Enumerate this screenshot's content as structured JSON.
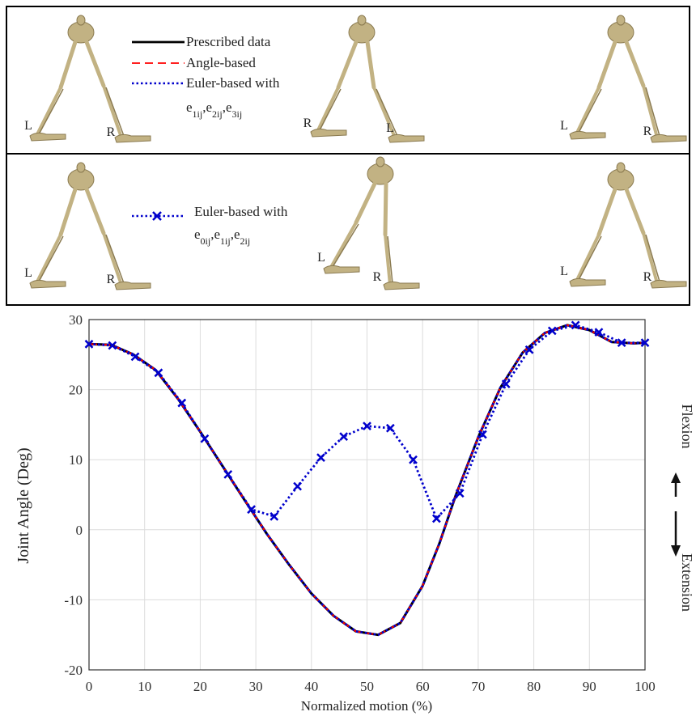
{
  "panels": [
    {
      "labels": [
        [
          "L",
          "R"
        ],
        [
          "R",
          "L"
        ],
        [
          "L",
          "R"
        ]
      ]
    },
    {
      "labels": [
        [
          "L",
          "R"
        ],
        [
          "L",
          "R"
        ],
        [
          "L",
          "R"
        ]
      ]
    }
  ],
  "chart_data": {
    "type": "line",
    "ylabel": "Joint Angle (Deg)",
    "xlabel": "Normalized motion (%)",
    "xlim": [
      0,
      100
    ],
    "xticks": [
      0,
      10,
      20,
      30,
      40,
      50,
      60,
      70,
      80,
      90,
      100
    ],
    "ylim": [
      -20,
      30
    ],
    "yticks": [
      -20,
      -10,
      0,
      10,
      20,
      30
    ],
    "grid": true,
    "annotations": {
      "up": "Flexion",
      "down": "Extension"
    },
    "series": [
      {
        "name": "Prescribed data",
        "color": "#000000",
        "dash": "solid",
        "panel": 0,
        "x": [
          0,
          4,
          8,
          12,
          16,
          20,
          24,
          28,
          32,
          36,
          40,
          44,
          48,
          52,
          56,
          60,
          63,
          66,
          70,
          74,
          78,
          82,
          86,
          90,
          94,
          98,
          100
        ],
        "values": [
          26.5,
          26.4,
          25,
          22.8,
          18.7,
          14,
          9.1,
          4.2,
          -0.6,
          -5,
          -9.1,
          -12.3,
          -14.5,
          -15,
          -13.3,
          -8,
          -2,
          5,
          13.2,
          20.3,
          25.3,
          28.1,
          29.2,
          28.5,
          26.8,
          26.6,
          26.7
        ]
      },
      {
        "name": "Angle-based",
        "color": "#ff0000",
        "dash": "dashed",
        "panel": 0,
        "x": [
          0,
          4,
          8,
          12,
          16,
          20,
          24,
          28,
          32,
          36,
          40,
          44,
          48,
          52,
          56,
          60,
          63,
          66,
          70,
          74,
          78,
          82,
          86,
          90,
          94,
          98,
          100
        ],
        "values": [
          26.5,
          26.4,
          25,
          22.8,
          18.7,
          14,
          9.1,
          4.2,
          -0.6,
          -5,
          -9.1,
          -12.3,
          -14.5,
          -15,
          -13.3,
          -8,
          -2,
          5,
          13.2,
          20.3,
          25.3,
          28.1,
          29.2,
          28.5,
          26.8,
          26.6,
          26.7
        ]
      },
      {
        "name": "Euler-based with",
        "name_line2": [
          [
            "e",
            "1ij"
          ],
          [
            ",e",
            "2ij"
          ],
          [
            ",e",
            "3ij"
          ]
        ],
        "color": "#0000cc",
        "dash": "dotted",
        "panel": 0,
        "x": [
          0,
          4,
          8,
          12,
          16,
          20,
          24,
          28,
          32,
          36,
          40,
          44,
          48,
          52,
          56,
          60,
          63,
          66,
          70,
          74,
          78,
          82,
          86,
          90,
          94,
          98,
          100
        ],
        "values": [
          26.5,
          26.4,
          25,
          22.8,
          18.7,
          14,
          9.1,
          4.2,
          -0.6,
          -5,
          -9.1,
          -12.3,
          -14.5,
          -15,
          -13.3,
          -8,
          -2,
          5,
          13.2,
          20.3,
          25.3,
          28.1,
          29.2,
          28.5,
          26.8,
          26.6,
          26.7
        ]
      },
      {
        "name": "Euler-based with",
        "name_line2": [
          [
            "e",
            "0ij"
          ],
          [
            ",e",
            "1ij"
          ],
          [
            ",e",
            "2ij"
          ]
        ],
        "color": "#0000cc",
        "dash": "dotted",
        "marker": "x",
        "panel": 1,
        "x": [
          0,
          4.2,
          8.3,
          12.5,
          16.7,
          20.8,
          25,
          29.2,
          33.3,
          37.5,
          41.7,
          45.8,
          50,
          54.2,
          58.3,
          62.5,
          66.7,
          70.8,
          75,
          79.2,
          83.3,
          87.5,
          91.7,
          95.8,
          100
        ],
        "values": [
          26.5,
          26.3,
          24.7,
          22.4,
          18.1,
          13,
          7.9,
          2.9,
          1.9,
          6.2,
          10.3,
          13.3,
          14.8,
          14.5,
          10,
          1.6,
          5.2,
          13.6,
          20.8,
          25.7,
          28.4,
          29.2,
          28.2,
          26.7,
          26.7
        ]
      }
    ]
  }
}
